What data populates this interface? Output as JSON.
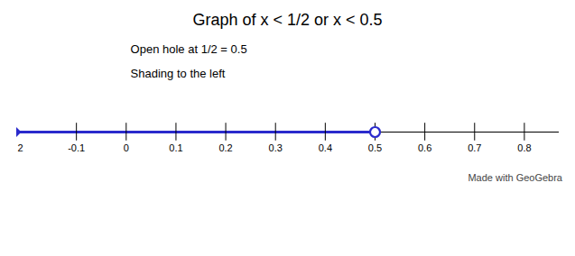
{
  "chart_data": {
    "type": "number_line",
    "title": "Graph of x < 1/2 or x < 0.5",
    "annotations": [
      "Open hole at  1/2 = 0.5",
      "Shading to the left"
    ],
    "watermark": "Made with GeoGebra",
    "left_edge_label": "2",
    "xlim": [
      -0.22,
      0.87
    ],
    "xticks": [
      -0.1,
      0,
      0.1,
      0.2,
      0.3,
      0.4,
      0.5,
      0.6,
      0.7,
      0.8
    ],
    "open_hole": 0.5,
    "shading": "left",
    "color": "#2a2acc"
  }
}
